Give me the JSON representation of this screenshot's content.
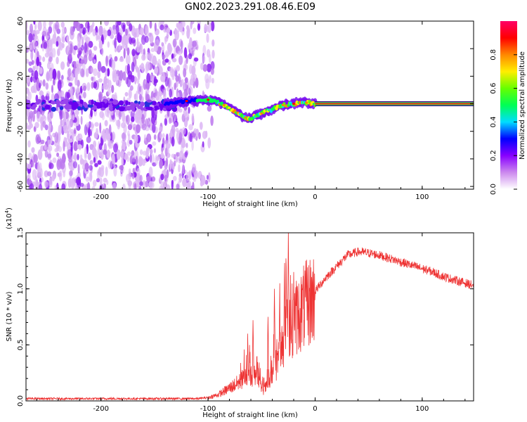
{
  "title": "GN02.2023.291.08.46.E09",
  "colors": {
    "snr_line": "#ee3333",
    "baseline_band": "#dd2222",
    "background": "#ffffff"
  },
  "chart_data": [
    {
      "type": "heatmap",
      "title": "GN02.2023.291.08.46.E09",
      "xlabel": "Height of straight line (km)",
      "ylabel": "Frequency (Hz)",
      "xlim": [
        -270,
        148
      ],
      "ylim": [
        -62,
        60
      ],
      "x_ticks": [
        -200,
        -100,
        0,
        100
      ],
      "x_tick_labels": [
        "-200",
        "-100",
        "0",
        "100"
      ],
      "y_ticks": [
        -60,
        -40,
        -20,
        0,
        20,
        40,
        60
      ],
      "y_tick_labels": [
        "-60",
        "-40",
        "-20",
        "0",
        "20",
        "40",
        "60"
      ],
      "colorbar": {
        "label": "Normalized spectral amplitude",
        "range": [
          0,
          1
        ],
        "ticks": [
          0.0,
          0.2,
          0.4,
          0.6,
          0.8
        ],
        "tick_labels": [
          "0.0",
          "0.2",
          "0.4",
          "0.6",
          "0.8"
        ],
        "colormap": [
          "#ffffff",
          "#cc88ee",
          "#8800ff",
          "#0000ff",
          "#00ddff",
          "#00ff55",
          "#66ff00",
          "#ffee00",
          "#ff8800",
          "#ff0000",
          "#ff0066"
        ]
      },
      "features": {
        "noise_region_x": [
          -270,
          -110
        ],
        "central_track": [
          {
            "x": -140,
            "f": 0
          },
          {
            "x": -120,
            "f": 2
          },
          {
            "x": -100,
            "f": 3
          },
          {
            "x": -90,
            "f": 1
          },
          {
            "x": -80,
            "f": -3
          },
          {
            "x": -70,
            "f": -8
          },
          {
            "x": -62,
            "f": -11
          },
          {
            "x": -50,
            "f": -7
          },
          {
            "x": -40,
            "f": -4
          },
          {
            "x": -30,
            "f": -1
          },
          {
            "x": -20,
            "f": 0
          },
          {
            "x": -10,
            "f": 1
          },
          {
            "x": 0,
            "f": 0
          }
        ],
        "constant_line_x": [
          0,
          148
        ],
        "constant_line_f": 0
      }
    },
    {
      "type": "line",
      "xlabel": "Height of straight line (km)",
      "ylabel": "SNR (10 * v/v)",
      "y_multiplier_label": "(x10^4)",
      "xlim": [
        -270,
        148
      ],
      "ylim": [
        0,
        1.5
      ],
      "x_ticks": [
        -200,
        -100,
        0,
        100
      ],
      "x_tick_labels": [
        "-200",
        "-100",
        "0",
        "100"
      ],
      "y_ticks": [
        0.0,
        0.5,
        1.0,
        1.5
      ],
      "y_tick_labels": [
        "0.0",
        "0.5",
        "1.0",
        "1.5"
      ],
      "envelope": {
        "x": [
          -270,
          -200,
          -110,
          -100,
          -90,
          -80,
          -70,
          -62,
          -55,
          -48,
          -42,
          -36,
          -30,
          -25,
          -22,
          -18,
          -10,
          0,
          10,
          20,
          30,
          40,
          50,
          60,
          70,
          80,
          90,
          100,
          110,
          120,
          130,
          148
        ],
        "y": [
          0.02,
          0.02,
          0.02,
          0.03,
          0.06,
          0.12,
          0.18,
          0.26,
          0.2,
          0.1,
          0.18,
          0.36,
          0.55,
          0.7,
          0.75,
          0.78,
          0.88,
          0.98,
          1.1,
          1.2,
          1.3,
          1.33,
          1.32,
          1.3,
          1.27,
          1.24,
          1.21,
          1.18,
          1.15,
          1.11,
          1.08,
          1.03
        ]
      },
      "spikes": [
        {
          "x": -63,
          "y": 0.6
        },
        {
          "x": -58,
          "y": 0.72
        },
        {
          "x": -54,
          "y": 0.5
        },
        {
          "x": -44,
          "y": 0.75
        },
        {
          "x": -38,
          "y": 1.0
        },
        {
          "x": -33,
          "y": 1.05
        },
        {
          "x": -27,
          "y": 1.2
        },
        {
          "x": -25,
          "y": 1.52
        },
        {
          "x": -20,
          "y": 1.15
        }
      ]
    }
  ]
}
